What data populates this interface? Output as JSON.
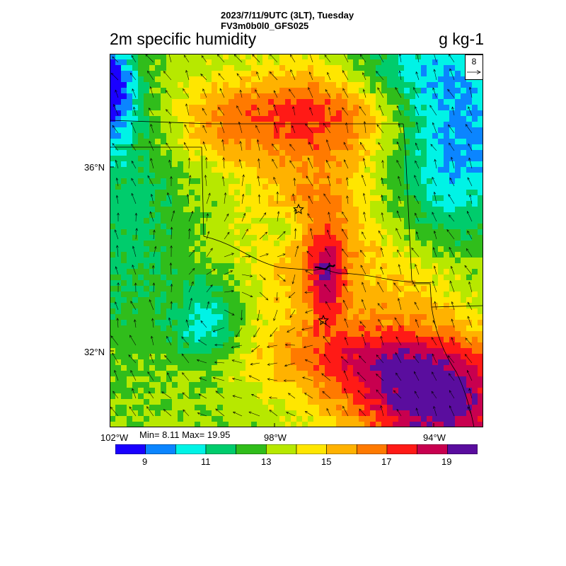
{
  "header": {
    "line1": "2023/7/11/9UTC (3LT), Tuesday",
    "line2": "FV3m0b0l0_GFS025"
  },
  "title": "2m specific humidity",
  "units": "g kg-1",
  "reference_vector": {
    "label": "8"
  },
  "lat_labels": [
    "36°N",
    "32°N"
  ],
  "lon_labels": [
    "102°W",
    "98°W",
    "94°W"
  ],
  "stats": "Min= 8.11 Max= 19.95",
  "colorbar": {
    "colors": [
      "#1a00ff",
      "#0b85ff",
      "#00f3e6",
      "#00cc6c",
      "#30bd1b",
      "#b7e800",
      "#ffe600",
      "#ffb200",
      "#ff7a00",
      "#ff1a16",
      "#c8004f",
      "#5a0d9e"
    ],
    "tick_labels": [
      "9",
      "11",
      "13",
      "15",
      "17",
      "19"
    ]
  },
  "chart_data": {
    "type": "heatmap",
    "title": "2m specific humidity",
    "units": "g kg-1",
    "levels": [
      8,
      9,
      10,
      11,
      12,
      13,
      14,
      15,
      16,
      17,
      18,
      19,
      20
    ],
    "min": 8.11,
    "max": 19.95,
    "lat_range": [
      30.5,
      38.5
    ],
    "lon_range": [
      -102,
      -93
    ],
    "markers": [
      "star",
      "star"
    ]
  }
}
